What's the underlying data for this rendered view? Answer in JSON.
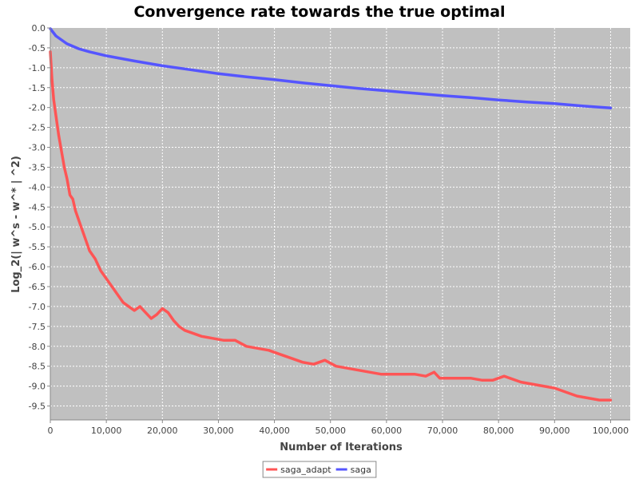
{
  "chart_data": {
    "type": "line",
    "title": "Convergence rate towards the true optimal",
    "xlabel": "Number of Iterations",
    "ylabel": "Log_2(| w^s - w^* | ^2)",
    "xlim": [
      0,
      103500
    ],
    "ylim": [
      -9.85,
      0.0
    ],
    "x_ticks": [
      0,
      10000,
      20000,
      30000,
      40000,
      50000,
      60000,
      70000,
      80000,
      90000,
      100000
    ],
    "x_tick_labels": [
      "0",
      "10,000",
      "20,000",
      "30,000",
      "40,000",
      "50,000",
      "60,000",
      "70,000",
      "80,000",
      "90,000",
      "100,000"
    ],
    "y_ticks": [
      0.0,
      -0.5,
      -1.0,
      -1.5,
      -2.0,
      -2.5,
      -3.0,
      -3.5,
      -4.0,
      -4.5,
      -5.0,
      -5.5,
      -6.0,
      -6.5,
      -7.0,
      -7.5,
      -8.0,
      -8.5,
      -9.0,
      -9.5
    ],
    "y_tick_labels": [
      "0.0",
      "-0.5",
      "-1.0",
      "-1.5",
      "-2.0",
      "-2.5",
      "-3.0",
      "-3.5",
      "-4.0",
      "-4.5",
      "-5.0",
      "-5.5",
      "-6.0",
      "-6.5",
      "-7.0",
      "-7.5",
      "-8.0",
      "-8.5",
      "-9.0",
      "-9.5"
    ],
    "grid": true,
    "legend_position": "bottom-center",
    "plot_background": "#c0c0c0",
    "series": [
      {
        "name": "saga_adapt",
        "color": "#ff5555",
        "x": [
          0,
          300,
          600,
          1000,
          1500,
          2000,
          2500,
          3000,
          3500,
          4000,
          4500,
          5000,
          6000,
          7000,
          8000,
          9000,
          10000,
          11000,
          12000,
          13000,
          14000,
          15000,
          16000,
          17000,
          18000,
          19000,
          20000,
          21000,
          22000,
          23000,
          24000,
          25000,
          27000,
          29000,
          31000,
          33000,
          35000,
          37000,
          39000,
          41000,
          43000,
          45000,
          47000,
          49000,
          51000,
          53000,
          55000,
          57000,
          59000,
          61000,
          63000,
          65000,
          67000,
          68500,
          69500,
          71000,
          73000,
          75000,
          77000,
          79000,
          81000,
          82000,
          84000,
          86000,
          88000,
          90000,
          92000,
          94000,
          96000,
          98000,
          100000
        ],
        "values": [
          -0.6,
          -1.3,
          -1.8,
          -2.2,
          -2.7,
          -3.1,
          -3.5,
          -3.8,
          -4.2,
          -4.3,
          -4.6,
          -4.8,
          -5.2,
          -5.6,
          -5.8,
          -6.1,
          -6.3,
          -6.5,
          -6.7,
          -6.9,
          -7.0,
          -7.1,
          -7.0,
          -7.15,
          -7.3,
          -7.2,
          -7.05,
          -7.15,
          -7.35,
          -7.5,
          -7.6,
          -7.65,
          -7.75,
          -7.8,
          -7.85,
          -7.85,
          -8.0,
          -8.05,
          -8.1,
          -8.2,
          -8.3,
          -8.4,
          -8.45,
          -8.35,
          -8.5,
          -8.55,
          -8.6,
          -8.65,
          -8.7,
          -8.7,
          -8.7,
          -8.7,
          -8.75,
          -8.65,
          -8.8,
          -8.8,
          -8.8,
          -8.8,
          -8.85,
          -8.85,
          -8.75,
          -8.8,
          -8.9,
          -8.95,
          -9.0,
          -9.05,
          -9.15,
          -9.25,
          -9.3,
          -9.35,
          -9.35
        ]
      },
      {
        "name": "saga",
        "color": "#5555ff",
        "x": [
          0,
          1000,
          2000,
          3000,
          5000,
          7000,
          10000,
          15000,
          20000,
          25000,
          30000,
          35000,
          40000,
          45000,
          50000,
          55000,
          60000,
          65000,
          70000,
          75000,
          80000,
          85000,
          90000,
          95000,
          100000
        ],
        "values": [
          -0.02,
          -0.2,
          -0.3,
          -0.4,
          -0.52,
          -0.6,
          -0.7,
          -0.83,
          -0.95,
          -1.05,
          -1.15,
          -1.23,
          -1.3,
          -1.38,
          -1.45,
          -1.52,
          -1.58,
          -1.64,
          -1.7,
          -1.75,
          -1.81,
          -1.86,
          -1.9,
          -1.96,
          -2.01
        ]
      }
    ]
  }
}
